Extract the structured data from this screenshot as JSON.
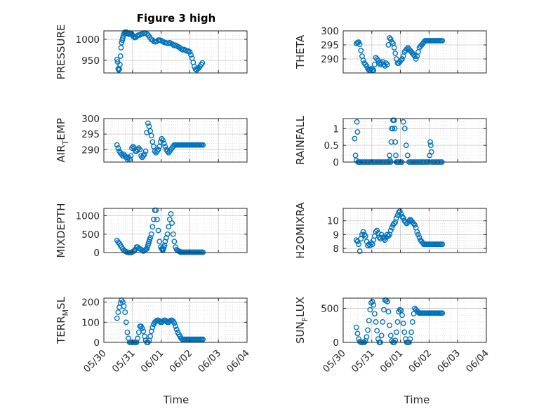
{
  "figure": {
    "title": "Figure 3 high",
    "marker_color": "#0072BD",
    "axis_color": "#262626",
    "grid": "major and minor (dotted)",
    "x_label": "Time",
    "x_tick_labels": [
      "05/30",
      "05/31",
      "06/01",
      "06/02",
      "06/03",
      "06/04"
    ]
  },
  "chart_data": [
    {
      "type": "scatter",
      "ylabel": "PRESSURE",
      "title": "Figure 3 high",
      "ylim": [
        920,
        1020
      ],
      "yticks": [
        950,
        1000
      ],
      "yticklabels": [
        "950",
        "1000"
      ],
      "x": [
        0.46,
        0.48,
        0.5,
        0.52,
        0.54,
        0.56,
        0.58,
        0.6,
        0.62,
        0.64,
        0.66,
        0.68,
        0.7,
        0.72,
        0.74,
        0.76,
        0.78,
        0.8,
        0.82,
        0.84,
        0.86,
        0.88,
        0.9,
        0.92,
        0.94,
        0.96,
        0.98,
        1.0,
        1.04,
        1.08,
        1.12,
        1.16,
        1.2,
        1.25,
        1.3,
        1.35,
        1.4,
        1.45,
        1.5,
        1.55,
        1.6,
        1.65,
        1.7,
        1.75,
        1.8,
        1.85,
        1.9,
        1.95,
        2.0,
        2.05,
        2.1,
        2.15,
        2.2,
        2.25,
        2.3,
        2.35,
        2.4,
        2.45,
        2.5,
        2.55,
        2.6,
        2.65,
        2.7,
        2.75,
        2.8,
        2.85,
        2.9,
        2.95,
        3.0,
        3.04,
        3.08,
        3.12,
        3.16,
        3.2,
        3.24,
        3.28,
        3.32,
        3.36,
        3.4,
        3.44
      ],
      "y": [
        952,
        946,
        930,
        927,
        929,
        940,
        960,
        980,
        992,
        998,
        1003,
        1008,
        1012,
        1015,
        1017,
        1017,
        1017,
        1016,
        1015,
        1013,
        1014,
        1012,
        1015,
        1014,
        1012,
        1013,
        1012,
        1009,
        1006,
        1004,
        1005,
        1008,
        1010,
        1010,
        1012,
        1013,
        1015,
        1015,
        1013,
        1010,
        1005,
        1000,
        998,
        995,
        994,
        995,
        998,
        998,
        997,
        995,
        993,
        992,
        991,
        990,
        992,
        990,
        988,
        985,
        986,
        984,
        982,
        980,
        977,
        975,
        976,
        974,
        972,
        972,
        970,
        963,
        955,
        945,
        935,
        929,
        927,
        930,
        932,
        936,
        940,
        944
      ]
    },
    {
      "type": "scatter",
      "ylabel": "THETA",
      "ylim": [
        285,
        300
      ],
      "yticks": [
        290,
        295,
        300
      ],
      "yticklabels": [
        "290",
        "295",
        "300"
      ],
      "x": [
        0.46,
        0.5,
        0.54,
        0.58,
        0.62,
        0.66,
        0.7,
        0.74,
        0.78,
        0.82,
        0.86,
        0.9,
        0.94,
        0.98,
        1.02,
        1.06,
        1.1,
        1.14,
        1.18,
        1.22,
        1.26,
        1.3,
        1.34,
        1.38,
        1.42,
        1.46,
        1.5,
        1.54,
        1.58,
        1.62,
        1.66,
        1.7,
        1.74,
        1.78,
        1.82,
        1.86,
        1.9,
        1.94,
        1.98,
        2.02,
        2.06,
        2.1,
        2.14,
        2.18,
        2.22,
        2.26,
        2.3,
        2.34,
        2.38,
        2.42,
        2.46,
        2.5,
        2.54,
        2.58,
        2.62,
        2.66,
        2.7,
        2.74,
        2.78,
        2.82,
        2.86,
        2.9,
        2.94,
        2.98,
        3.02,
        3.06,
        3.1,
        3.14,
        3.18,
        3.22,
        3.26,
        3.3,
        3.34,
        3.38,
        3.42,
        3.46
      ],
      "y": [
        295.5,
        295.8,
        296.0,
        295.2,
        293.0,
        291.0,
        289.5,
        288.5,
        288.0,
        287.5,
        286.5,
        286.0,
        286.2,
        286.5,
        286.0,
        286.0,
        288.0,
        290.5,
        290.0,
        289.5,
        288.5,
        288.0,
        288.5,
        289.0,
        288.0,
        287.5,
        288.5,
        288.0,
        295.0,
        297.5,
        297.0,
        296.0,
        295.5,
        294.0,
        292.0,
        290.0,
        288.5,
        288.5,
        289.0,
        289.5,
        290.0,
        291.0,
        292.5,
        293.0,
        293.5,
        294.0,
        293.5,
        293.0,
        292.5,
        292.0,
        291.5,
        291.0,
        290.0,
        291.0,
        292.5,
        294.0,
        294.5,
        295.0,
        295.5,
        296.0,
        296.5,
        296.5,
        296.5,
        296.5,
        296.5,
        296.5,
        296.5,
        296.5,
        296.5,
        296.5,
        296.5,
        296.5,
        296.5,
        296.5,
        296.5,
        296.5
      ]
    },
    {
      "type": "scatter",
      "ylabel": "AIR_TEMP",
      "ylabel_parts": [
        "AIR",
        "T",
        "EMP"
      ],
      "ylim": [
        286,
        300
      ],
      "yticks": [
        290,
        295,
        300
      ],
      "yticklabels": [
        "290",
        "295",
        "300"
      ],
      "x": [
        0.46,
        0.5,
        0.54,
        0.58,
        0.62,
        0.66,
        0.7,
        0.74,
        0.78,
        0.82,
        0.86,
        0.9,
        0.94,
        0.98,
        1.02,
        1.06,
        1.1,
        1.14,
        1.18,
        1.22,
        1.26,
        1.3,
        1.34,
        1.38,
        1.42,
        1.46,
        1.5,
        1.54,
        1.58,
        1.62,
        1.66,
        1.7,
        1.74,
        1.78,
        1.82,
        1.86,
        1.9,
        1.94,
        1.98,
        2.02,
        2.06,
        2.1,
        2.14,
        2.18,
        2.22,
        2.26,
        2.3,
        2.34,
        2.38,
        2.42,
        2.46,
        2.5,
        2.54,
        2.58,
        2.62,
        2.66,
        2.7,
        2.74,
        2.78,
        2.82,
        2.86,
        2.9,
        2.94,
        2.98,
        3.02,
        3.06,
        3.1,
        3.14,
        3.18,
        3.22,
        3.26,
        3.3,
        3.34,
        3.38,
        3.42,
        3.46
      ],
      "y": [
        291.5,
        290.5,
        289.5,
        289.0,
        288.5,
        288.0,
        288.5,
        288.0,
        287.5,
        287.0,
        287.5,
        287.0,
        288.0,
        290.5,
        291.0,
        290.5,
        289.5,
        289.5,
        290.0,
        290.5,
        290.0,
        288.0,
        287.5,
        288.0,
        288.5,
        289.5,
        295.5,
        298.5,
        297.5,
        296.0,
        294.5,
        292.5,
        291.0,
        289.5,
        289.0,
        289.5,
        290.0,
        291.0,
        292.5,
        293.5,
        293.0,
        292.0,
        291.0,
        290.0,
        289.5,
        289.0,
        289.5,
        290.0,
        290.5,
        291.0,
        291.5,
        291.5,
        291.5,
        291.5,
        291.5,
        291.5,
        291.5,
        291.5,
        291.5,
        291.5,
        291.5,
        291.5,
        291.5,
        291.5,
        291.5,
        291.5,
        291.5,
        291.5,
        291.5,
        291.5,
        291.5,
        291.5,
        291.5,
        291.5,
        291.5,
        291.5
      ]
    },
    {
      "type": "scatter",
      "ylabel": "RAINFALL",
      "ylim": [
        0,
        1.3
      ],
      "yticks": [
        0,
        0.5,
        1
      ],
      "yticklabels": [
        "0",
        "0.5",
        "1"
      ],
      "x": [
        0.4,
        0.43,
        0.46,
        0.48,
        0.5,
        0.52,
        0.54,
        0.56,
        0.6,
        0.65,
        0.7,
        0.75,
        0.8,
        0.85,
        0.9,
        0.95,
        1.0,
        1.05,
        1.1,
        1.15,
        1.2,
        1.25,
        1.3,
        1.35,
        1.4,
        1.45,
        1.5,
        1.55,
        1.6,
        1.62,
        1.64,
        1.66,
        1.68,
        1.7,
        1.72,
        1.74,
        1.76,
        1.78,
        1.8,
        1.82,
        1.84,
        1.86,
        1.88,
        1.9,
        1.92,
        1.95,
        2.0,
        2.05,
        2.1,
        2.15,
        2.2,
        2.25,
        2.3,
        2.35,
        2.4,
        2.45,
        2.5,
        2.55,
        2.6,
        2.65,
        2.7,
        2.75,
        2.8,
        2.85,
        2.9,
        2.95,
        3.0,
        3.02,
        3.04,
        3.06,
        3.08,
        3.1,
        3.15,
        3.2,
        3.25,
        3.3,
        3.35,
        3.4,
        3.45
      ],
      "y": [
        0.7,
        0.2,
        0.05,
        1.2,
        0.9,
        0.0,
        0.0,
        0.0,
        0.0,
        0.0,
        0.0,
        0.0,
        0.0,
        0.0,
        0.0,
        0.0,
        0.0,
        0.0,
        0.0,
        0.0,
        0.0,
        0.0,
        0.0,
        0.0,
        0.0,
        0.0,
        0.0,
        0.0,
        0.0,
        0.2,
        0.05,
        0.0,
        0.6,
        1.0,
        1.0,
        1.25,
        1.25,
        1.25,
        1.0,
        0.6,
        0.2,
        0.0,
        0.0,
        0.0,
        0.0,
        0.0,
        0.0,
        0.0,
        1.2,
        1.0,
        0.5,
        0.2,
        0.0,
        0.0,
        0.0,
        0.0,
        0.0,
        0.0,
        0.0,
        0.0,
        0.0,
        0.0,
        0.0,
        0.0,
        0.0,
        0.0,
        0.0,
        0.2,
        0.6,
        0.5,
        0.3,
        0.0,
        0.0,
        0.0,
        0.0,
        0.0,
        0.0,
        0.0,
        0.0
      ]
    },
    {
      "type": "scatter",
      "ylabel": "MIXDEPTH",
      "ylim": [
        0,
        1200
      ],
      "yticks": [
        0,
        500,
        1000
      ],
      "yticklabels": [
        "0",
        "500",
        "1000"
      ],
      "x": [
        0.46,
        0.5,
        0.54,
        0.58,
        0.62,
        0.66,
        0.7,
        0.74,
        0.78,
        0.82,
        0.86,
        0.9,
        0.94,
        0.98,
        1.02,
        1.06,
        1.1,
        1.14,
        1.18,
        1.22,
        1.26,
        1.3,
        1.34,
        1.38,
        1.42,
        1.46,
        1.5,
        1.52,
        1.54,
        1.56,
        1.58,
        1.6,
        1.62,
        1.66,
        1.7,
        1.74,
        1.78,
        1.82,
        1.86,
        1.9,
        1.94,
        1.98,
        2.02,
        2.04,
        2.06,
        2.08,
        2.1,
        2.12,
        2.14,
        2.18,
        2.22,
        2.26,
        2.3,
        2.34,
        2.38,
        2.42,
        2.46,
        2.5,
        2.54,
        2.58,
        2.62,
        2.64,
        2.66,
        2.68,
        2.7,
        2.72,
        2.74,
        2.78,
        2.82,
        2.86,
        2.9,
        2.94,
        2.98,
        3.02,
        3.06,
        3.1,
        3.14,
        3.18,
        3.22,
        3.26,
        3.3,
        3.34,
        3.38,
        3.42,
        3.46
      ],
      "y": [
        330,
        280,
        250,
        200,
        150,
        100,
        60,
        40,
        20,
        10,
        0,
        0,
        0,
        10,
        30,
        50,
        80,
        150,
        150,
        120,
        100,
        80,
        60,
        40,
        60,
        80,
        100,
        150,
        200,
        250,
        300,
        350,
        400,
        500,
        700,
        900,
        1150,
        1150,
        900,
        600,
        300,
        150,
        100,
        80,
        60,
        100,
        150,
        200,
        300,
        400,
        500,
        700,
        900,
        1050,
        800,
        500,
        300,
        150,
        80,
        50,
        40,
        30,
        20,
        10,
        10,
        10,
        10,
        10,
        10,
        10,
        10,
        10,
        10,
        10,
        10,
        10,
        10,
        10,
        10,
        10,
        10,
        10,
        10,
        10,
        10
      ]
    },
    {
      "type": "scatter",
      "ylabel": "H2OMIXRA",
      "ylim": [
        7.7,
        10.9
      ],
      "yticks": [
        8,
        9,
        10
      ],
      "yticklabels": [
        "8",
        "9",
        "10"
      ],
      "x": [
        0.46,
        0.5,
        0.54,
        0.58,
        0.62,
        0.66,
        0.7,
        0.74,
        0.78,
        0.82,
        0.86,
        0.9,
        0.94,
        0.98,
        1.02,
        1.06,
        1.1,
        1.14,
        1.18,
        1.22,
        1.26,
        1.3,
        1.34,
        1.38,
        1.42,
        1.46,
        1.5,
        1.54,
        1.58,
        1.62,
        1.66,
        1.7,
        1.74,
        1.78,
        1.82,
        1.86,
        1.9,
        1.94,
        1.98,
        2.02,
        2.06,
        2.1,
        2.14,
        2.18,
        2.22,
        2.26,
        2.3,
        2.34,
        2.38,
        2.42,
        2.46,
        2.5,
        2.54,
        2.58,
        2.62,
        2.66,
        2.7,
        2.74,
        2.78,
        2.82,
        2.86,
        2.9,
        2.94,
        2.98,
        3.02,
        3.06,
        3.1,
        3.14,
        3.18,
        3.22,
        3.26,
        3.3,
        3.34,
        3.38,
        3.42,
        3.46
      ],
      "y": [
        8.6,
        8.5,
        8.3,
        7.8,
        8.7,
        9.0,
        9.2,
        9.0,
        8.9,
        8.5,
        8.2,
        8.3,
        8.2,
        8.4,
        8.3,
        8.6,
        8.9,
        9.2,
        9.3,
        9.1,
        8.8,
        8.7,
        9.0,
        8.8,
        8.7,
        8.6,
        8.8,
        9.0,
        8.9,
        9.0,
        9.3,
        9.5,
        9.7,
        9.8,
        9.9,
        10.2,
        10.4,
        10.6,
        10.7,
        10.5,
        10.3,
        10.2,
        10.0,
        9.9,
        9.8,
        9.9,
        10.0,
        10.1,
        10.0,
        9.9,
        9.8,
        9.7,
        9.5,
        9.2,
        9.0,
        8.8,
        8.6,
        8.5,
        8.4,
        8.3,
        8.3,
        8.3,
        8.3,
        8.3,
        8.3,
        8.3,
        8.3,
        8.3,
        8.3,
        8.3,
        8.3,
        8.3,
        8.3,
        8.3,
        8.3,
        8.3
      ]
    },
    {
      "type": "scatter",
      "ylabel": "TERR_MSL",
      "ylabel_parts": [
        "TERR",
        "M",
        "SL"
      ],
      "ylim": [
        0,
        220
      ],
      "yticks": [
        0,
        100,
        200
      ],
      "yticklabels": [
        "0",
        "100",
        "200"
      ],
      "x": [
        0.46,
        0.5,
        0.54,
        0.58,
        0.62,
        0.66,
        0.7,
        0.74,
        0.78,
        0.82,
        0.86,
        0.9,
        0.94,
        0.98,
        1.02,
        1.06,
        1.1,
        1.14,
        1.18,
        1.22,
        1.26,
        1.3,
        1.34,
        1.38,
        1.42,
        1.46,
        1.5,
        1.54,
        1.58,
        1.62,
        1.66,
        1.7,
        1.74,
        1.78,
        1.82,
        1.86,
        1.9,
        1.94,
        1.98,
        2.02,
        2.06,
        2.1,
        2.14,
        2.18,
        2.22,
        2.26,
        2.3,
        2.34,
        2.38,
        2.42,
        2.46,
        2.5,
        2.54,
        2.58,
        2.62,
        2.66,
        2.7,
        2.74,
        2.78,
        2.82,
        2.86,
        2.9,
        2.94,
        2.98,
        3.02,
        3.06,
        3.1,
        3.14,
        3.18,
        3.22,
        3.26,
        3.3,
        3.34,
        3.38,
        3.42,
        3.46
      ],
      "y": [
        120,
        150,
        175,
        195,
        210,
        200,
        180,
        150,
        100,
        50,
        20,
        0,
        0,
        0,
        0,
        0,
        0,
        0,
        20,
        50,
        80,
        80,
        70,
        55,
        30,
        10,
        0,
        0,
        10,
        30,
        55,
        75,
        90,
        100,
        105,
        110,
        110,
        105,
        100,
        100,
        105,
        110,
        110,
        105,
        100,
        100,
        105,
        110,
        110,
        105,
        95,
        80,
        65,
        50,
        40,
        30,
        20,
        15,
        15,
        15,
        15,
        15,
        15,
        15,
        15,
        15,
        15,
        15,
        15,
        15,
        15,
        15,
        15,
        15,
        15,
        15
      ]
    },
    {
      "type": "scatter",
      "ylabel": "SUN_FLUX",
      "ylabel_parts": [
        "SUN",
        "F",
        "LUX"
      ],
      "ylim": [
        0,
        650
      ],
      "yticks": [
        0,
        500
      ],
      "yticklabels": [
        "0",
        "500"
      ],
      "x": [
        0.46,
        0.5,
        0.54,
        0.58,
        0.62,
        0.66,
        0.7,
        0.74,
        0.78,
        0.82,
        0.86,
        0.9,
        0.94,
        0.98,
        1.02,
        1.06,
        1.1,
        1.14,
        1.18,
        1.22,
        1.26,
        1.3,
        1.34,
        1.38,
        1.42,
        1.46,
        1.5,
        1.54,
        1.58,
        1.62,
        1.66,
        1.7,
        1.74,
        1.78,
        1.82,
        1.86,
        1.9,
        1.94,
        1.98,
        2.02,
        2.06,
        2.1,
        2.14,
        2.18,
        2.22,
        2.26,
        2.3,
        2.34,
        2.38,
        2.42,
        2.46,
        2.5,
        2.54,
        2.58,
        2.62,
        2.66,
        2.7,
        2.74,
        2.78,
        2.82,
        2.86,
        2.9,
        2.94,
        2.98,
        3.02,
        3.06,
        3.1,
        3.14,
        3.18,
        3.22,
        3.26,
        3.3,
        3.34,
        3.38,
        3.42,
        3.46
      ],
      "y": [
        220,
        130,
        50,
        10,
        0,
        0,
        0,
        0,
        20,
        80,
        180,
        320,
        480,
        580,
        600,
        550,
        420,
        300,
        170,
        50,
        0,
        0,
        100,
        300,
        480,
        620,
        620,
        600,
        450,
        250,
        100,
        20,
        0,
        0,
        30,
        150,
        300,
        450,
        480,
        470,
        400,
        280,
        150,
        50,
        0,
        0,
        0,
        50,
        150,
        300,
        420,
        500,
        480,
        460,
        440,
        430,
        430,
        430,
        430,
        430,
        430,
        430,
        430,
        430,
        430,
        430,
        430,
        430,
        430,
        430,
        430,
        430,
        430,
        430,
        430,
        430
      ]
    }
  ]
}
